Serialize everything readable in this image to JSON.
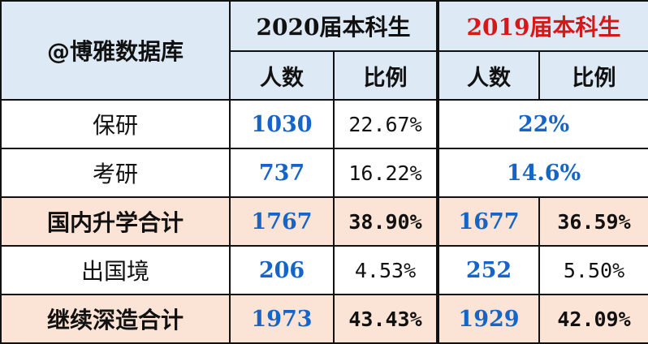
{
  "header": {
    "brand": "@博雅数据库",
    "group_2020": "2020届本科生",
    "group_2019": "2019届本科生",
    "col_count": "人数",
    "col_ratio": "比例",
    "accent_2019": "#d81818"
  },
  "rows": [
    {
      "label": "保研",
      "c2020": "1030",
      "r2020": "22.67%",
      "merged2019": "22%",
      "highlight": false
    },
    {
      "label": "考研",
      "c2020": "737",
      "r2020": "16.22%",
      "merged2019": "14.6%",
      "highlight": false
    },
    {
      "label": "国内升学合计",
      "c2020": "1767",
      "r2020": "38.90%",
      "c2019": "1677",
      "r2019": "36.59%",
      "highlight": true
    },
    {
      "label": "出国境",
      "c2020": "206",
      "r2020": "4.53%",
      "c2019": "252",
      "r2019": "5.50%",
      "highlight": false
    },
    {
      "label": "继续深造合计",
      "c2020": "1973",
      "r2020": "43.43%",
      "c2019": "1929",
      "r2019": "42.09%",
      "highlight": true
    }
  ]
}
